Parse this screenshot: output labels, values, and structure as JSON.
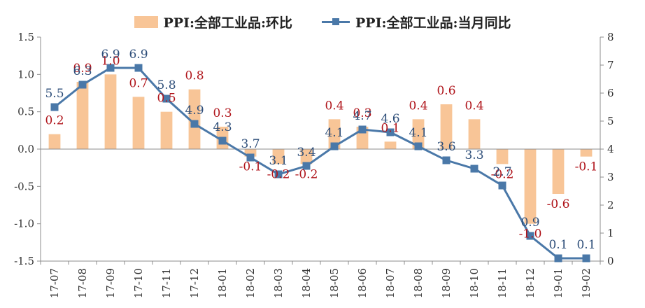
{
  "chart_data": {
    "type": "bar+line",
    "categories": [
      "17-07",
      "17-08",
      "17-09",
      "17-10",
      "17-11",
      "17-12",
      "18-01",
      "18-02",
      "18-03",
      "18-04",
      "18-05",
      "18-06",
      "18-07",
      "18-08",
      "18-09",
      "18-10",
      "18-11",
      "18-12",
      "19-01",
      "19-02"
    ],
    "bar_series": {
      "name": "PPI:全部工业品:环比",
      "axis": "left",
      "color": "#F8C597",
      "label_color": "#B0161C",
      "values": [
        0.2,
        0.9,
        1.0,
        0.7,
        0.5,
        0.8,
        0.3,
        -0.1,
        -0.2,
        -0.2,
        0.4,
        0.3,
        0.1,
        0.4,
        0.6,
        0.4,
        -0.2,
        -1.0,
        -0.6,
        -0.1
      ],
      "labels": [
        "0.2",
        "0.9",
        "1.0",
        "0.7",
        "0.5",
        "0.8",
        "0.3",
        "-0.1",
        "-0.2",
        "-0.2",
        "0.4",
        "0.3",
        "0.1",
        "0.4",
        "0.6",
        "0.4",
        "-0.2",
        "-1.0",
        "-0.6",
        "-0.1"
      ]
    },
    "line_series": {
      "name": "PPI:全部工业品:当月同比",
      "axis": "right",
      "color": "#4A78A8",
      "label_color": "#2F4F7A",
      "values": [
        5.5,
        6.3,
        6.9,
        6.9,
        5.8,
        4.9,
        4.3,
        3.7,
        3.1,
        3.4,
        4.1,
        4.7,
        4.6,
        4.1,
        3.6,
        3.3,
        2.7,
        0.9,
        0.1,
        0.1
      ],
      "labels": [
        "5.5",
        "6.3",
        "6.9",
        "6.9",
        "5.8",
        "4.9",
        "4.3",
        "3.7",
        "3.1",
        "3.4",
        "4.1",
        "4.7",
        "4.6",
        "4.1",
        "3.6",
        "3.3",
        "2.7",
        "0.9",
        "0.1",
        "0.1"
      ]
    },
    "y_left": {
      "min": -1.5,
      "max": 1.5,
      "ticks": [
        "-1.5",
        "-1.0",
        "-0.5",
        "0.0",
        "0.5",
        "1.0",
        "1.5"
      ]
    },
    "y_right": {
      "min": 0,
      "max": 8,
      "ticks": [
        "0",
        "1",
        "2",
        "3",
        "4",
        "5",
        "6",
        "7",
        "8"
      ]
    },
    "grid": false,
    "legend_position": "top"
  }
}
